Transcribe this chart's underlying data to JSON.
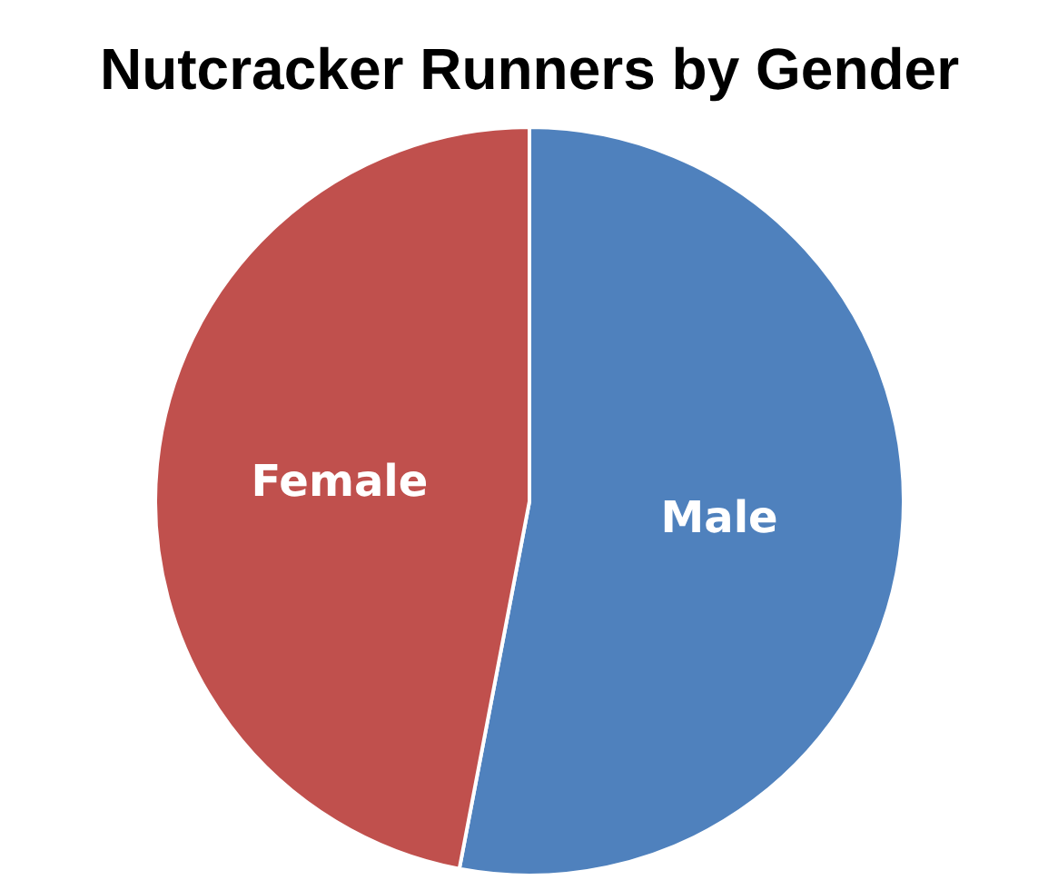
{
  "chart_data": {
    "type": "pie",
    "title": "Nutcracker Runners by Gender",
    "categories": [
      "Male",
      "Female"
    ],
    "values": [
      53,
      47
    ],
    "colors": [
      "#4f81bd",
      "#c0504d"
    ],
    "legend": false
  }
}
